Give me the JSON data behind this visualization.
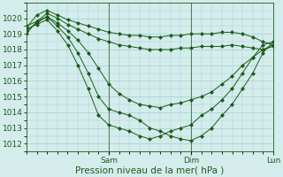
{
  "background_color": "#d4ecec",
  "grid_color": "#a8cccc",
  "line_color": "#1a5c1a",
  "xlabel": "Pression niveau de la mer( hPa )",
  "xlabel_fontsize": 7.5,
  "tick_label_fontsize": 6.5,
  "day_labels": [
    "Sam",
    "Dim",
    "Lun"
  ],
  "day_positions": [
    0.333,
    0.666,
    1.0
  ],
  "ylim": [
    1011.5,
    1021.0
  ],
  "yticks": [
    1012,
    1013,
    1014,
    1015,
    1016,
    1017,
    1018,
    1019,
    1020
  ],
  "series": [
    {
      "x": [
        0.0,
        0.042,
        0.083,
        0.125,
        0.167,
        0.208,
        0.25,
        0.292,
        0.333,
        0.375,
        0.417,
        0.458,
        0.5,
        0.542,
        0.583,
        0.625,
        0.666,
        0.708,
        0.75,
        0.792,
        0.833,
        0.875,
        0.917,
        0.958,
        1.0
      ],
      "y": [
        1019.4,
        1020.2,
        1020.5,
        1020.2,
        1019.9,
        1019.7,
        1019.5,
        1019.3,
        1019.1,
        1019.0,
        1018.9,
        1018.9,
        1018.8,
        1018.8,
        1018.9,
        1018.9,
        1019.0,
        1019.0,
        1019.0,
        1019.1,
        1019.1,
        1019.0,
        1018.8,
        1018.5,
        1018.3
      ]
    },
    {
      "x": [
        0.0,
        0.042,
        0.083,
        0.125,
        0.167,
        0.208,
        0.25,
        0.292,
        0.333,
        0.375,
        0.417,
        0.458,
        0.5,
        0.542,
        0.583,
        0.625,
        0.666,
        0.708,
        0.75,
        0.792,
        0.833,
        0.875,
        0.917,
        0.958,
        1.0
      ],
      "y": [
        1019.0,
        1019.8,
        1020.3,
        1020.0,
        1019.6,
        1019.3,
        1019.0,
        1018.7,
        1018.5,
        1018.3,
        1018.2,
        1018.1,
        1018.0,
        1018.0,
        1018.0,
        1018.1,
        1018.1,
        1018.2,
        1018.2,
        1018.2,
        1018.3,
        1018.2,
        1018.1,
        1018.0,
        1018.2
      ]
    },
    {
      "x": [
        0.0,
        0.042,
        0.083,
        0.125,
        0.167,
        0.208,
        0.25,
        0.292,
        0.333,
        0.375,
        0.417,
        0.458,
        0.5,
        0.542,
        0.583,
        0.625,
        0.666,
        0.708,
        0.75,
        0.792,
        0.833,
        0.875,
        0.917,
        0.958,
        1.0
      ],
      "y": [
        1019.2,
        1019.7,
        1020.1,
        1019.7,
        1019.2,
        1018.6,
        1017.8,
        1016.8,
        1015.8,
        1015.2,
        1014.8,
        1014.5,
        1014.4,
        1014.3,
        1014.5,
        1014.6,
        1014.8,
        1015.0,
        1015.3,
        1015.8,
        1016.3,
        1017.0,
        1017.5,
        1018.0,
        1018.3
      ]
    },
    {
      "x": [
        0.0,
        0.042,
        0.083,
        0.125,
        0.167,
        0.208,
        0.25,
        0.292,
        0.333,
        0.375,
        0.417,
        0.458,
        0.5,
        0.542,
        0.583,
        0.625,
        0.666,
        0.708,
        0.75,
        0.792,
        0.833,
        0.875,
        0.917,
        0.958,
        1.0
      ],
      "y": [
        1019.5,
        1019.8,
        1020.1,
        1019.5,
        1018.8,
        1017.8,
        1016.5,
        1015.0,
        1014.2,
        1014.0,
        1013.8,
        1013.5,
        1013.0,
        1012.8,
        1012.5,
        1012.3,
        1012.2,
        1012.5,
        1013.0,
        1013.8,
        1014.5,
        1015.5,
        1016.5,
        1017.8,
        1018.5
      ]
    },
    {
      "x": [
        0.0,
        0.042,
        0.083,
        0.125,
        0.167,
        0.208,
        0.25,
        0.292,
        0.333,
        0.375,
        0.417,
        0.458,
        0.5,
        0.542,
        0.583,
        0.625,
        0.666,
        0.708,
        0.75,
        0.792,
        0.833,
        0.875,
        0.917,
        0.958,
        1.0
      ],
      "y": [
        1019.3,
        1019.6,
        1019.9,
        1019.2,
        1018.3,
        1017.0,
        1015.5,
        1013.8,
        1013.2,
        1013.0,
        1012.8,
        1012.5,
        1012.3,
        1012.5,
        1012.8,
        1013.0,
        1013.2,
        1013.8,
        1014.2,
        1014.8,
        1015.5,
        1016.5,
        1017.5,
        1018.3,
        1018.5
      ]
    }
  ]
}
